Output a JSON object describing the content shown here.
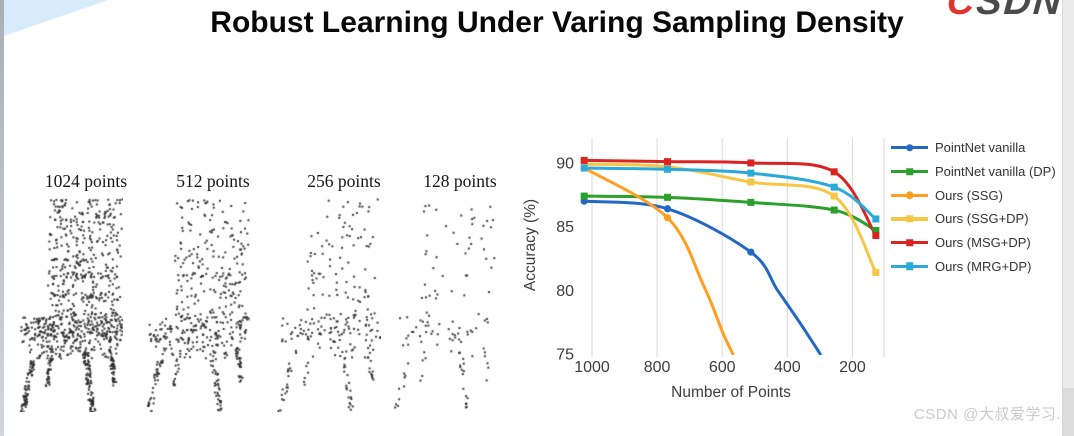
{
  "title": "Robust Learning Under Varing Sampling Density",
  "logo": {
    "c": "C",
    "rest": "SDN",
    "c_color": "#e0342f",
    "rest_color": "#4a4a4a"
  },
  "watermark": "CSDN @大叔爱学习.",
  "corner_color": "#d6ebfb",
  "point_color": "#2d2d2d",
  "pointclouds": [
    {
      "label": "1024 points",
      "count": 1024
    },
    {
      "label": "512 points",
      "count": 512
    },
    {
      "label": "256 points",
      "count": 256
    },
    {
      "label": "128 points",
      "count": 128
    }
  ],
  "chart_data": {
    "type": "line",
    "title": "",
    "xlabel": "Number of Points",
    "ylabel": "Accuracy (%)",
    "x_axis_reversed": true,
    "xlim": [
      1043,
      103
    ],
    "ylim": [
      75,
      91.8
    ],
    "x_ticks": [
      1000,
      800,
      600,
      400,
      200
    ],
    "y_ticks": [
      90,
      85,
      80,
      75
    ],
    "grid": "vertical",
    "gridline_color": "#d9d9d9",
    "legend_position": "right",
    "series": [
      {
        "name": "PointNet vanilla",
        "color": "#2368c4",
        "marker": "circle",
        "x": [
          1024,
          768,
          512
        ],
        "y": [
          87.0,
          86.4,
          83.0
        ],
        "tail": [
          [
            430,
            80.0
          ],
          [
            360,
            77.4
          ],
          [
            299,
            75.0
          ]
        ]
      },
      {
        "name": "PointNet vanilla (DP)",
        "color": "#2ba02b",
        "marker": "square",
        "x": [
          1024,
          768,
          512,
          256,
          128
        ],
        "y": [
          87.4,
          87.3,
          86.9,
          86.3,
          84.7
        ],
        "tail": []
      },
      {
        "name": "Ours (SSG)",
        "color": "#ff9e1f",
        "marker": "circle",
        "x": [
          1024,
          768
        ],
        "y": [
          89.6,
          85.7
        ],
        "tail": [
          [
            656,
            80.3
          ],
          [
            597,
            76.6
          ],
          [
            567,
            75.0
          ]
        ]
      },
      {
        "name": "Ours (SSG+DP)",
        "color": "#f6c645",
        "marker": "square",
        "x": [
          1024,
          768,
          512,
          256,
          128
        ],
        "y": [
          89.9,
          89.7,
          88.5,
          87.4,
          81.4
        ],
        "tail": []
      },
      {
        "name": "Ours (MSG+DP)",
        "color": "#d92422",
        "marker": "square",
        "x": [
          1024,
          768,
          512,
          256,
          128
        ],
        "y": [
          90.2,
          90.1,
          90.0,
          89.3,
          84.3
        ],
        "tail": []
      },
      {
        "name": "Ours (MRG+DP)",
        "color": "#2ba9d8",
        "marker": "square",
        "x": [
          1024,
          768,
          512,
          256,
          128
        ],
        "y": [
          89.6,
          89.5,
          89.2,
          88.1,
          85.6
        ],
        "tail": []
      }
    ]
  }
}
